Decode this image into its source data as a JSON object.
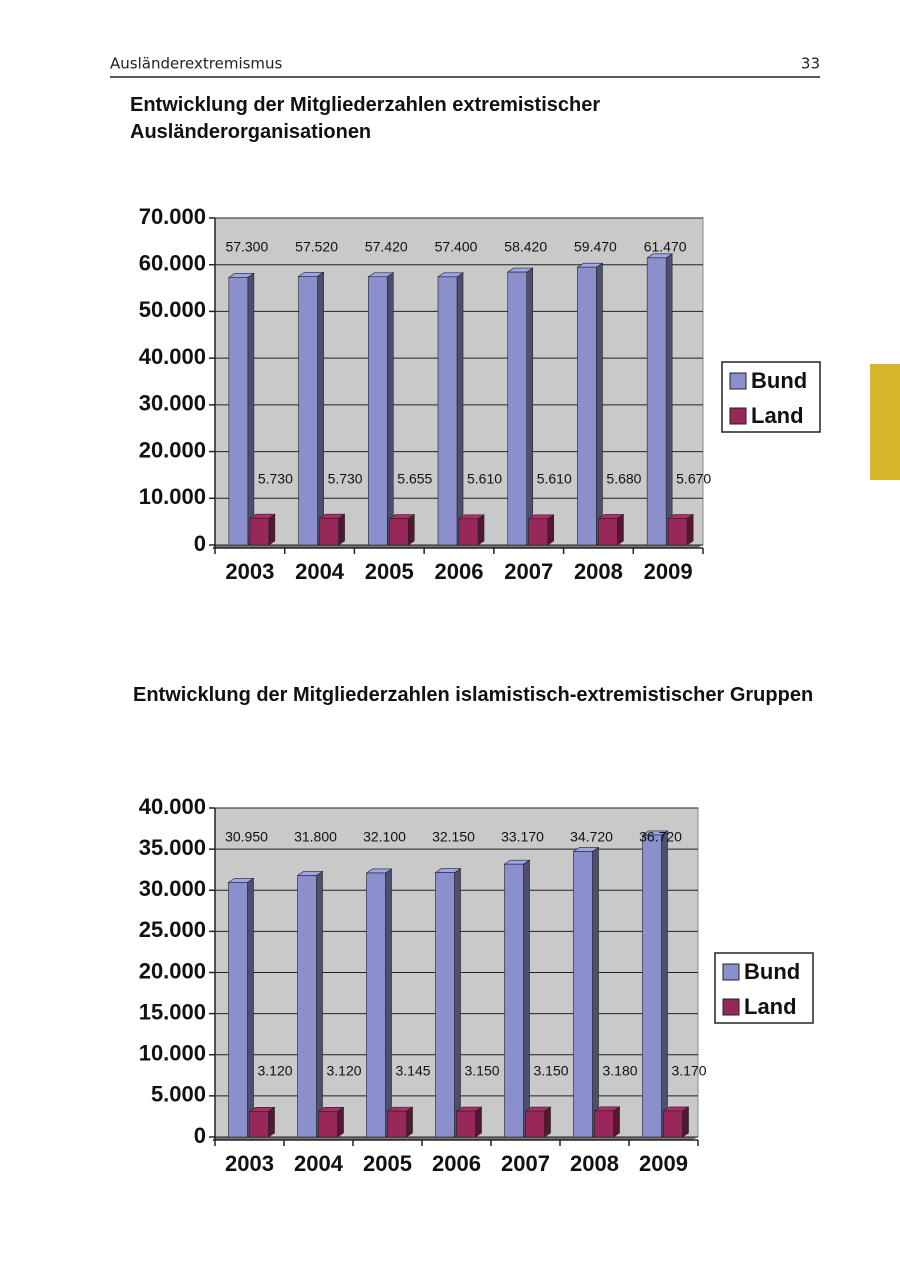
{
  "header": {
    "title": "Ausländerextremismus",
    "page": "33"
  },
  "chart_data": [
    {
      "type": "bar",
      "title": "Entwicklung der Mitgliederzahlen extremistischer Ausländerorganisationen",
      "categories": [
        "2003",
        "2004",
        "2005",
        "2006",
        "2007",
        "2008",
        "2009"
      ],
      "series": [
        {
          "name": "Bund",
          "color": "#8b8fcc",
          "values": [
            57300,
            57520,
            57420,
            57400,
            58420,
            59470,
            61470
          ],
          "value_labels": [
            "57.300",
            "57.520",
            "57.420",
            "57.400",
            "58.420",
            "59.470",
            "61.470"
          ]
        },
        {
          "name": "Land",
          "color": "#99285a",
          "values": [
            5730,
            5730,
            5655,
            5610,
            5610,
            5680,
            5670
          ],
          "value_labels": [
            "5.730",
            "5.730",
            "5.655",
            "5.610",
            "5.610",
            "5.680",
            "5.670"
          ]
        }
      ],
      "ylim": [
        0,
        70000
      ],
      "yticks": [
        0,
        {
          "value": 10000,
          "label": "10.000"
        },
        {
          "value": 20000,
          "label": "20.000"
        },
        {
          "value": 30000,
          "label": "30.000"
        },
        {
          "value": 40000,
          "label": "40.000"
        },
        {
          "value": 50000,
          "label": "50.000"
        },
        {
          "value": 60000,
          "label": "60.000"
        },
        {
          "value": 70000,
          "label": "70.000"
        }
      ],
      "grid": true,
      "legend": "right"
    },
    {
      "type": "bar",
      "title": "Entwicklung der Mitgliederzahlen islamistisch-extremistischer Gruppen",
      "categories": [
        "2003",
        "2004",
        "2005",
        "2006",
        "2007",
        "2008",
        "2009"
      ],
      "series": [
        {
          "name": "Bund",
          "color": "#8b8fcc",
          "values": [
            30950,
            31800,
            32100,
            32150,
            33170,
            34720,
            36720
          ],
          "value_labels": [
            "30.950",
            "31.800",
            "32.100",
            "32.150",
            "33.170",
            "34.720",
            "36.720"
          ]
        },
        {
          "name": "Land",
          "color": "#99285a",
          "values": [
            3120,
            3120,
            3145,
            3150,
            3150,
            3180,
            3170
          ],
          "value_labels": [
            "3.120",
            "3.120",
            "3.145",
            "3.150",
            "3.150",
            "3.180",
            "3.170"
          ]
        }
      ],
      "ylim": [
        0,
        40000
      ],
      "yticks": [
        0,
        {
          "value": 5000,
          "label": "5.000"
        },
        {
          "value": 10000,
          "label": "10.000"
        },
        {
          "value": 15000,
          "label": "15.000"
        },
        {
          "value": 20000,
          "label": "20.000"
        },
        {
          "value": 25000,
          "label": "25.000"
        },
        {
          "value": 30000,
          "label": "30.000"
        },
        {
          "value": 35000,
          "label": "35.000"
        },
        {
          "value": 40000,
          "label": "40.000"
        }
      ],
      "grid": true,
      "legend": "right"
    }
  ]
}
